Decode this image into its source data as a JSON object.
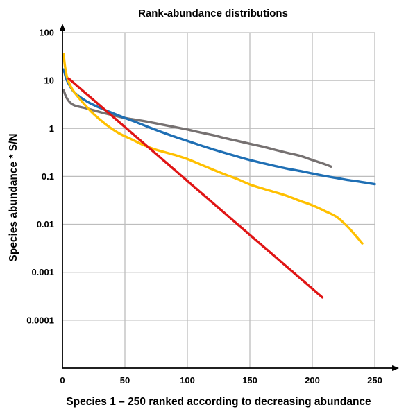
{
  "chart_data": {
    "type": "line",
    "title": "Rank-abundance distributions",
    "xlabel": "Species 1 – 250 ranked according to decreasing abundance",
    "ylabel": "Species abundance * S/N",
    "xlim": [
      0,
      250
    ],
    "ylim": [
      1e-05,
      100
    ],
    "y_scale": "log",
    "grid": true,
    "legend": "none",
    "x_ticks": [
      {
        "value": 0,
        "label": "0"
      },
      {
        "value": 50,
        "label": "50"
      },
      {
        "value": 100,
        "label": "100"
      },
      {
        "value": 150,
        "label": "150"
      },
      {
        "value": 200,
        "label": "200"
      },
      {
        "value": 250,
        "label": "250"
      }
    ],
    "y_ticks": [
      {
        "value": 100,
        "label": "100"
      },
      {
        "value": 10,
        "label": "10"
      },
      {
        "value": 1,
        "label": "1"
      },
      {
        "value": 0.1,
        "label": "0.1"
      },
      {
        "value": 0.01,
        "label": "0.01"
      },
      {
        "value": 0.001,
        "label": "0.001"
      },
      {
        "value": 0.0001,
        "label": "0.0001"
      }
    ],
    "series": [
      {
        "color": "#767171",
        "points": [
          [
            1,
            6.3
          ],
          [
            3,
            4.5
          ],
          [
            6,
            3.5
          ],
          [
            10,
            3.0
          ],
          [
            20,
            2.6
          ],
          [
            30,
            2.2
          ],
          [
            40,
            1.9
          ],
          [
            50,
            1.65
          ],
          [
            60,
            1.5
          ],
          [
            70,
            1.35
          ],
          [
            80,
            1.2
          ],
          [
            90,
            1.07
          ],
          [
            100,
            0.95
          ],
          [
            110,
            0.83
          ],
          [
            120,
            0.73
          ],
          [
            130,
            0.63
          ],
          [
            140,
            0.55
          ],
          [
            150,
            0.48
          ],
          [
            160,
            0.42
          ],
          [
            170,
            0.36
          ],
          [
            180,
            0.31
          ],
          [
            190,
            0.27
          ],
          [
            200,
            0.22
          ],
          [
            210,
            0.18
          ],
          [
            215,
            0.16
          ]
        ]
      },
      {
        "color": "#1F6FB4",
        "points": [
          [
            1,
            17
          ],
          [
            3,
            11
          ],
          [
            5,
            8.5
          ],
          [
            10,
            5.5
          ],
          [
            20,
            3.6
          ],
          [
            30,
            2.7
          ],
          [
            40,
            2.1
          ],
          [
            50,
            1.65
          ],
          [
            60,
            1.32
          ],
          [
            70,
            1.04
          ],
          [
            80,
            0.83
          ],
          [
            90,
            0.67
          ],
          [
            100,
            0.55
          ],
          [
            110,
            0.45
          ],
          [
            120,
            0.37
          ],
          [
            130,
            0.31
          ],
          [
            140,
            0.26
          ],
          [
            150,
            0.22
          ],
          [
            160,
            0.19
          ],
          [
            170,
            0.165
          ],
          [
            180,
            0.145
          ],
          [
            190,
            0.13
          ],
          [
            200,
            0.115
          ],
          [
            210,
            0.102
          ],
          [
            220,
            0.092
          ],
          [
            230,
            0.083
          ],
          [
            240,
            0.076
          ],
          [
            250,
            0.069
          ]
        ]
      },
      {
        "color": "#FFC000",
        "points": [
          [
            1,
            35
          ],
          [
            2,
            20
          ],
          [
            4,
            11
          ],
          [
            8,
            6.5
          ],
          [
            15,
            3.8
          ],
          [
            25,
            2.0
          ],
          [
            35,
            1.2
          ],
          [
            45,
            0.8
          ],
          [
            55,
            0.6
          ],
          [
            65,
            0.45
          ],
          [
            75,
            0.36
          ],
          [
            90,
            0.28
          ],
          [
            100,
            0.23
          ],
          [
            110,
            0.18
          ],
          [
            120,
            0.14
          ],
          [
            130,
            0.11
          ],
          [
            140,
            0.088
          ],
          [
            150,
            0.068
          ],
          [
            160,
            0.056
          ],
          [
            170,
            0.047
          ],
          [
            180,
            0.039
          ],
          [
            190,
            0.031
          ],
          [
            200,
            0.025
          ],
          [
            210,
            0.019
          ],
          [
            220,
            0.014
          ],
          [
            230,
            0.008
          ],
          [
            240,
            0.004
          ]
        ]
      },
      {
        "color": "#E01515",
        "points": [
          [
            5,
            11
          ],
          [
            208,
            0.0003
          ]
        ]
      }
    ]
  }
}
